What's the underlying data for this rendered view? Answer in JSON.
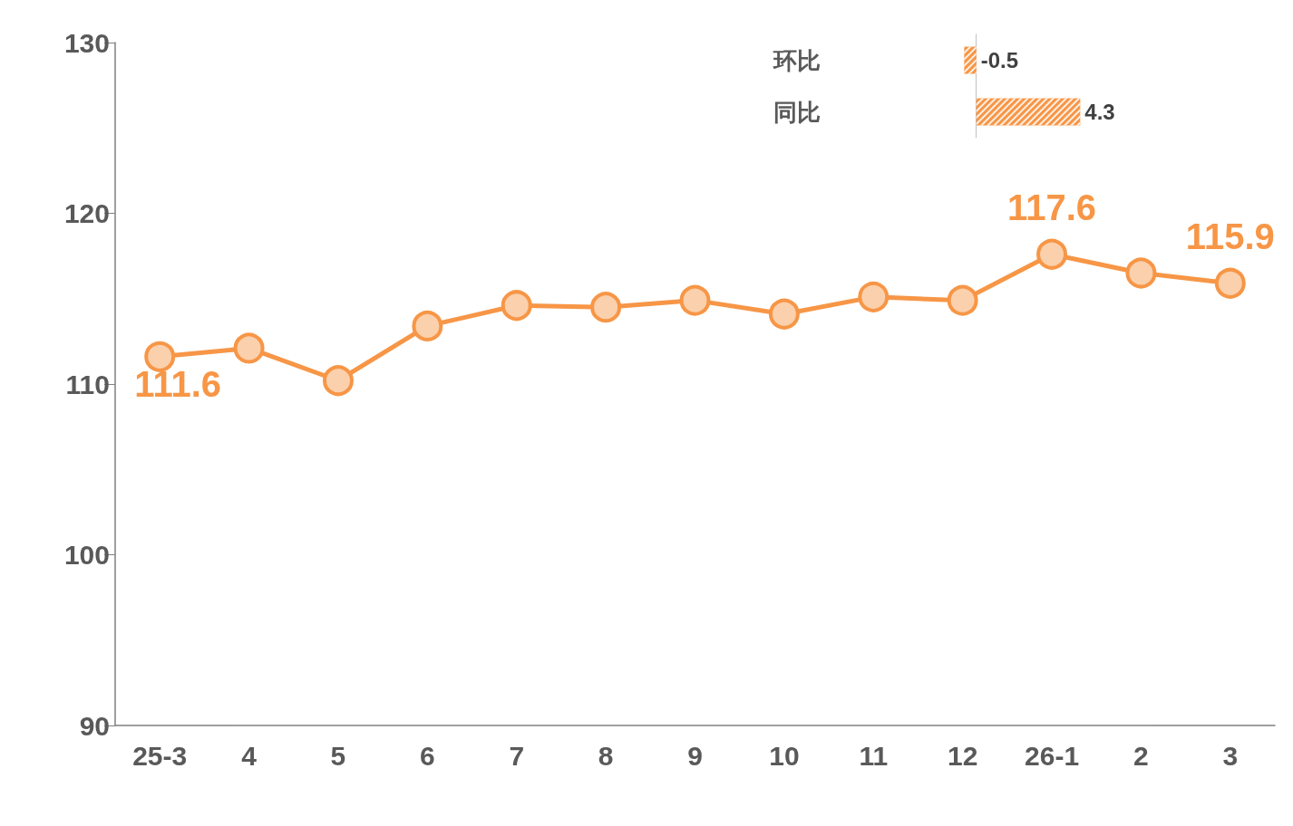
{
  "chart_data": [
    {
      "type": "line",
      "categories": [
        "25-3",
        "4",
        "5",
        "6",
        "7",
        "8",
        "9",
        "10",
        "11",
        "12",
        "26-1",
        "2",
        "3"
      ],
      "series": [
        {
          "color": "#f79646",
          "values": [
            111.6,
            112.1,
            110.2,
            113.4,
            114.6,
            114.5,
            114.9,
            114.1,
            115.1,
            114.9,
            117.6,
            116.5,
            115.9
          ],
          "value_labels": [
            "111.6",
            null,
            null,
            null,
            null,
            null,
            null,
            null,
            null,
            null,
            "117.6",
            null,
            "115.9"
          ]
        }
      ],
      "ylim": [
        90,
        130
      ],
      "yticks": [
        90,
        100,
        110,
        120,
        130
      ],
      "grid": false,
      "marker": "circle",
      "line_style": "solid"
    },
    {
      "type": "bar",
      "orientation": "horizontal",
      "categories": [
        "环比",
        "同比"
      ],
      "values": [
        -0.5,
        4.3
      ],
      "color": "#f79646",
      "data_labels": true,
      "tick_labels": "y"
    }
  ]
}
